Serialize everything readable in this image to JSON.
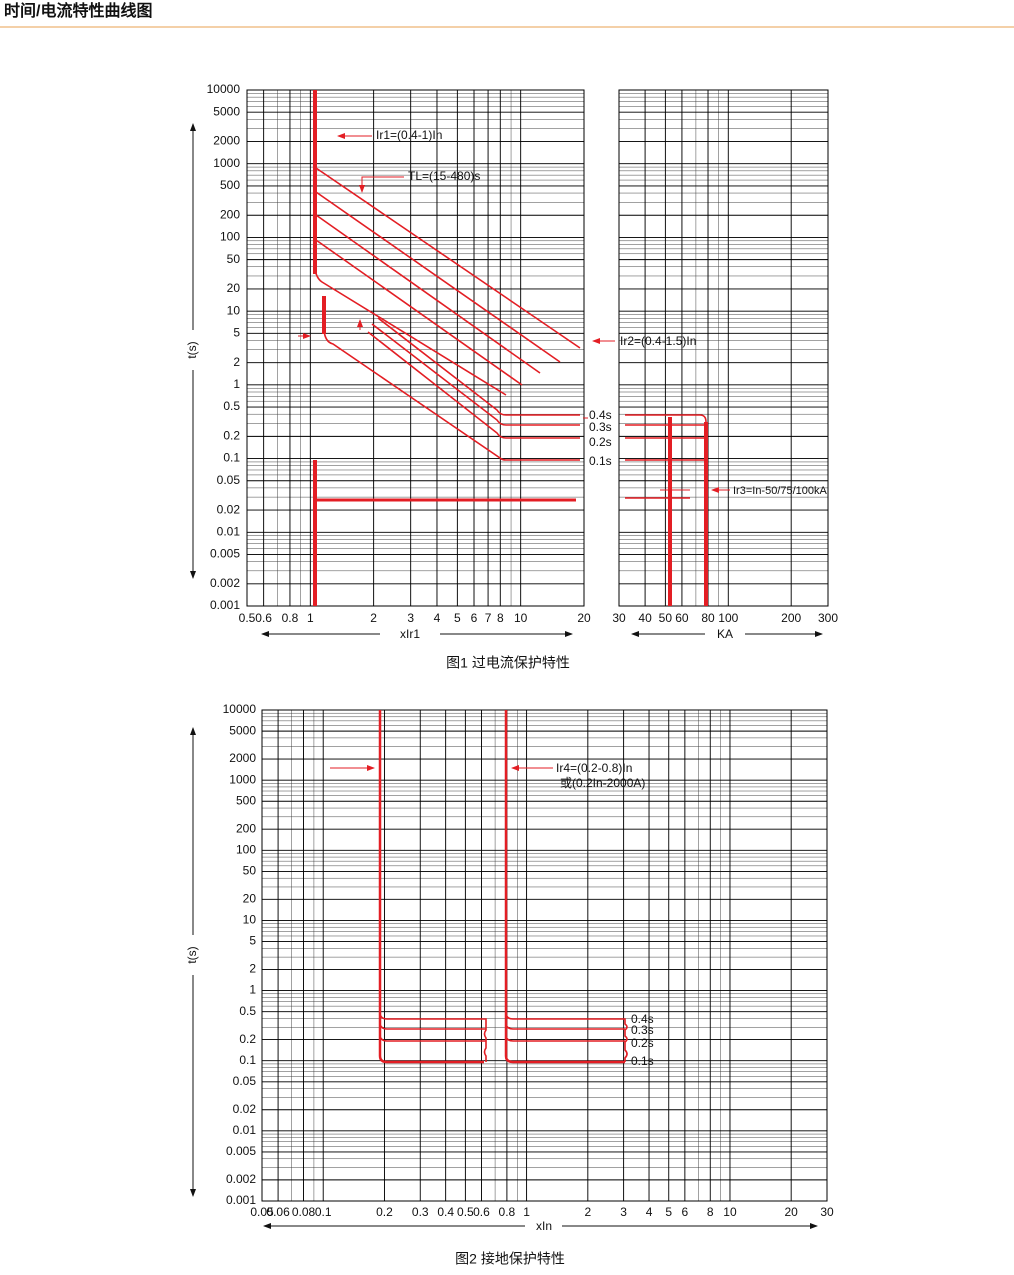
{
  "header": {
    "title": "时间/电流特性曲线图"
  },
  "figures": [
    {
      "caption": "图1 过电流保护特性",
      "y_label": "t(s)",
      "ylim": [
        0.001,
        10000
      ],
      "yticks": [
        10000,
        5000,
        2000,
        1000,
        500,
        200,
        100,
        50,
        20,
        10,
        5,
        2,
        1,
        0.5,
        0.2,
        0.1,
        0.05,
        0.02,
        0.01,
        0.005,
        0.002,
        0.001
      ],
      "panels": [
        {
          "x_label": "xIr1",
          "xlim": [
            0.5,
            20
          ],
          "xticks": [
            0.5,
            0.6,
            0.8,
            1,
            2,
            3,
            4,
            5,
            6,
            7,
            8,
            10,
            20
          ]
        },
        {
          "x_label": "KA",
          "xlim": [
            30,
            300
          ],
          "xticks": [
            30,
            40,
            50,
            60,
            80,
            100,
            200,
            300
          ]
        }
      ],
      "annotations": [
        "Ir1=(0.4-1)In",
        "TL=(15-480)s",
        "Ir2=(0.4-1.5)In",
        "0.4s",
        "0.3s",
        "0.2s",
        "0.1s",
        "Ir3=In-50/75/100kA"
      ]
    },
    {
      "caption": "图2 接地保护特性",
      "y_label": "t(s)",
      "ylim": [
        0.001,
        10000
      ],
      "yticks": [
        10000,
        5000,
        2000,
        1000,
        500,
        200,
        100,
        50,
        20,
        10,
        5,
        2,
        1,
        0.5,
        0.2,
        0.1,
        0.05,
        0.02,
        0.01,
        0.005,
        0.002,
        0.001
      ],
      "panels": [
        {
          "x_label": "xIn",
          "xlim": [
            0.05,
            30
          ],
          "xticks": [
            0.05,
            0.06,
            0.08,
            0.1,
            0.2,
            0.3,
            0.4,
            0.5,
            0.6,
            0.8,
            1,
            2,
            3,
            4,
            5,
            6,
            8,
            10,
            20,
            30
          ]
        }
      ],
      "annotations": [
        "Ir4=(0.2-0.8)In",
        "或(0.2In-2000A)",
        "0.4s",
        "0.3s",
        "0.2s",
        "0.1s"
      ]
    }
  ]
}
